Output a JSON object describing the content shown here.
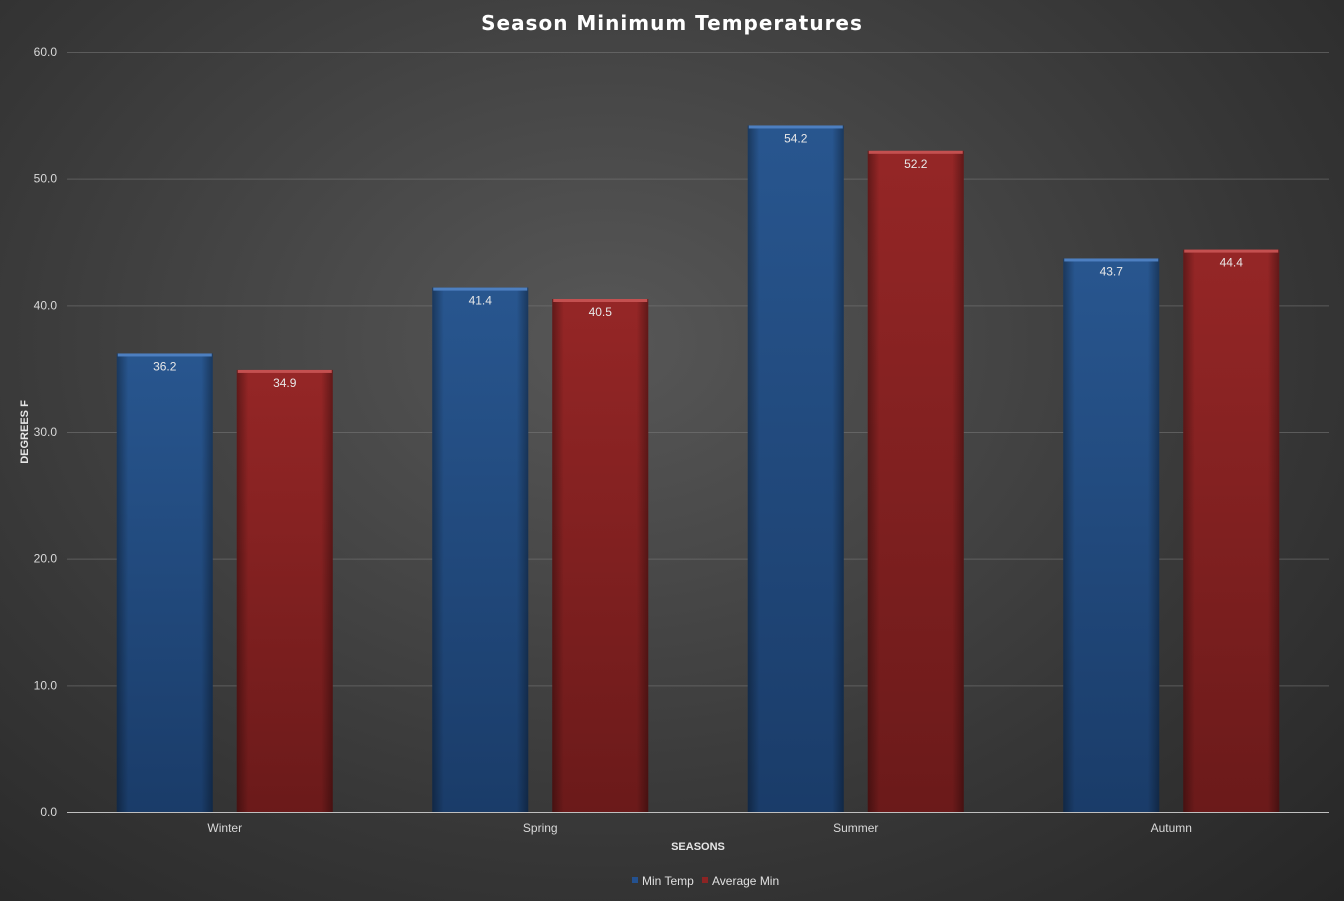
{
  "chart_data": {
    "type": "bar",
    "title": "Season Minimum Temperatures",
    "xlabel": "SEASONS",
    "ylabel": "DEGREES F",
    "categories": [
      "Winter",
      "Spring",
      "Summer",
      "Autumn"
    ],
    "series": [
      {
        "name": "Min Temp",
        "values": [
          36.2,
          41.4,
          54.2,
          43.7
        ],
        "color": "#24518f"
      },
      {
        "name": "Average Min",
        "values": [
          34.9,
          40.5,
          52.2,
          44.4
        ],
        "color": "#8c2424"
      }
    ],
    "ylim": [
      0,
      60
    ],
    "yticks": [
      "0.0",
      "10.0",
      "20.0",
      "30.0",
      "40.0",
      "50.0",
      "60.0"
    ],
    "grid": true,
    "legend_position": "bottom",
    "data_labels": true
  }
}
